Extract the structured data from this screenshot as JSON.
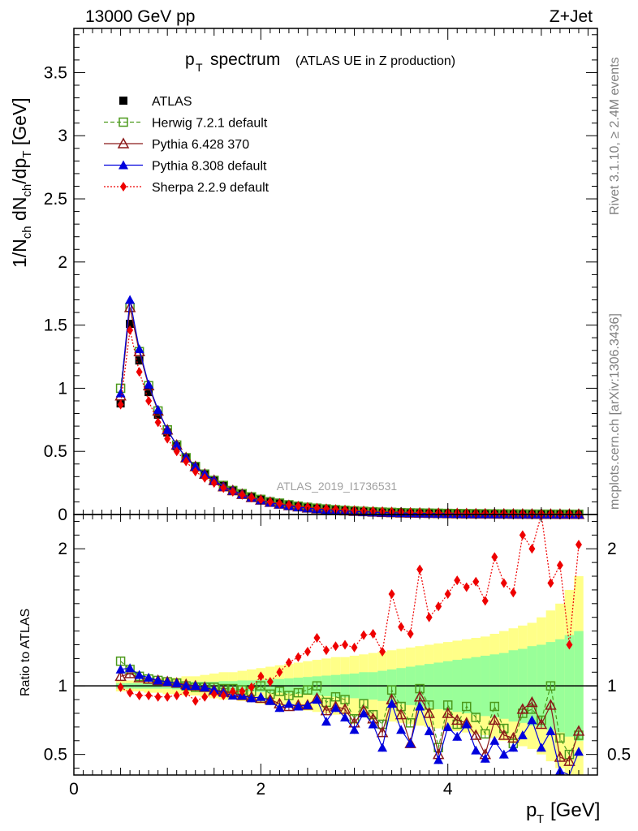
{
  "header": {
    "left": "13000 GeV pp",
    "right": "Z+Jet"
  },
  "side_labels": {
    "rivet": "Rivet 3.1.10, ≥ 2.4M events",
    "mcplots": "mcplots.cern.ch [arXiv:1306.3436]"
  },
  "watermark": "ATLAS_2019_I1736531",
  "chart_data": [
    {
      "type": "scatter",
      "panel": "main",
      "title": "p_T spectrum (ATLAS UE in Z production)",
      "title_main": "p",
      "title_sub": "T",
      "title_word": "spectrum",
      "title_note": "(ATLAS UE in Z production)",
      "ylabel": "1/N_ch dN_ch/dp_T [GeV]",
      "xlabel": "p_T [GeV]",
      "xlim": [
        0,
        5.6
      ],
      "ylim": [
        0,
        3.85
      ],
      "yticks": [
        "0",
        "0.5",
        "1",
        "1.5",
        "2",
        "2.5",
        "3",
        "3.5"
      ],
      "xticks": [
        "0",
        "2",
        "4"
      ],
      "legend_position": "top-left",
      "x": [
        0.5,
        0.6,
        0.7,
        0.8,
        0.9,
        1.0,
        1.1,
        1.2,
        1.3,
        1.4,
        1.5,
        1.6,
        1.7,
        1.8,
        1.9,
        2.0,
        2.1,
        2.2,
        2.3,
        2.4,
        2.5,
        2.6,
        2.7,
        2.8,
        2.9,
        3.0,
        3.1,
        3.2,
        3.3,
        3.4,
        3.5,
        3.6,
        3.7,
        3.8,
        3.9,
        4.0,
        4.1,
        4.2,
        4.3,
        4.4,
        4.5,
        4.6,
        4.7,
        4.8,
        4.9,
        5.0,
        5.1,
        5.2,
        5.3,
        5.4
      ],
      "series": [
        {
          "name": "ATLAS",
          "color": "#000000",
          "marker": "square-filled",
          "line": "none",
          "values": [
            0.88,
            1.51,
            1.22,
            0.97,
            0.79,
            0.65,
            0.54,
            0.45,
            0.38,
            0.32,
            0.27,
            0.23,
            0.19,
            0.165,
            0.14,
            0.12,
            0.105,
            0.09,
            0.078,
            0.068,
            0.06,
            0.052,
            0.046,
            0.04,
            0.035,
            0.031,
            0.027,
            0.024,
            0.021,
            0.019,
            0.017,
            0.015,
            0.013,
            0.012,
            0.011,
            0.0095,
            0.0085,
            0.0076,
            0.0068,
            0.0061,
            0.0055,
            0.005,
            0.0045,
            0.004,
            0.0036,
            0.0033,
            0.003,
            0.0027,
            0.0024,
            0.0022
          ]
        },
        {
          "name": "Herwig 7.2.1 default",
          "color": "#4c9a1c",
          "marker": "square-open",
          "line": "dashed",
          "values": [
            1.0,
            1.64,
            1.29,
            1.02,
            0.82,
            0.67,
            0.55,
            0.45,
            0.38,
            0.32,
            0.27,
            0.23,
            0.19,
            0.165,
            0.14,
            0.12,
            0.1,
            0.09,
            0.077,
            0.066,
            0.057,
            0.05,
            0.044,
            0.038,
            0.033,
            0.029,
            0.025,
            0.022,
            0.019,
            0.017,
            0.015,
            0.013,
            0.012,
            0.011,
            0.01,
            0.0088,
            0.0078,
            0.007,
            0.0063,
            0.0056,
            0.005,
            0.0045,
            0.0041,
            0.0037,
            0.0033,
            0.003,
            0.0027,
            0.0024,
            0.0022,
            0.002
          ]
        },
        {
          "name": "Pythia 6.428 370",
          "color": "#8b1a1a",
          "marker": "triangle-open",
          "line": "solid",
          "values": [
            0.94,
            1.64,
            1.29,
            1.02,
            0.82,
            0.67,
            0.55,
            0.45,
            0.38,
            0.32,
            0.27,
            0.22,
            0.19,
            0.16,
            0.135,
            0.115,
            0.097,
            0.083,
            0.071,
            0.061,
            0.052,
            0.045,
            0.04,
            0.034,
            0.03,
            0.026,
            0.023,
            0.02,
            0.017,
            0.015,
            0.013,
            0.012,
            0.011,
            0.0095,
            0.0085,
            0.0075,
            0.0066,
            0.0059,
            0.0052,
            0.0047,
            0.0042,
            0.0038,
            0.0034,
            0.003,
            0.0027,
            0.0024,
            0.0021,
            0.0019,
            0.0017,
            0.0015
          ]
        },
        {
          "name": "Pythia 8.308 default",
          "color": "#0000dd",
          "marker": "triangle-filled",
          "line": "solid",
          "values": [
            0.96,
            1.7,
            1.31,
            1.03,
            0.83,
            0.67,
            0.55,
            0.45,
            0.38,
            0.32,
            0.27,
            0.22,
            0.19,
            0.16,
            0.135,
            0.113,
            0.095,
            0.08,
            0.068,
            0.058,
            0.05,
            0.043,
            0.037,
            0.032,
            0.028,
            0.024,
            0.021,
            0.018,
            0.016,
            0.014,
            0.012,
            0.011,
            0.0095,
            0.0085,
            0.0075,
            0.0066,
            0.0058,
            0.0051,
            0.0045,
            0.004,
            0.0036,
            0.0032,
            0.0028,
            0.0025,
            0.0022,
            0.002,
            0.0018,
            0.0016,
            0.0014,
            0.0012
          ]
        },
        {
          "name": "Sherpa 2.2.9 default",
          "color": "#ee0000",
          "marker": "diamond-filled",
          "line": "dotted",
          "values": [
            0.87,
            1.46,
            1.13,
            0.9,
            0.73,
            0.6,
            0.5,
            0.42,
            0.34,
            0.29,
            0.25,
            0.21,
            0.18,
            0.155,
            0.133,
            0.115,
            0.1,
            0.087,
            0.076,
            0.067,
            0.059,
            0.052,
            0.047,
            0.042,
            0.037,
            0.033,
            0.03,
            0.027,
            0.024,
            0.022,
            0.02,
            0.018,
            0.016,
            0.015,
            0.014,
            0.013,
            0.012,
            0.011,
            0.01,
            0.0095,
            0.0088,
            0.0082,
            0.0076,
            0.007,
            0.0065,
            0.006,
            0.0055,
            0.005,
            0.0046,
            0.0042
          ]
        }
      ]
    },
    {
      "type": "scatter",
      "panel": "ratio",
      "ylabel": "Ratio to ATLAS",
      "xlabel": "p_T [GeV]",
      "xlim": [
        0,
        5.6
      ],
      "ylim": [
        0.35,
        2.25
      ],
      "yticks": [
        "0.5",
        "1",
        "2"
      ],
      "xticks": [
        "0",
        "2",
        "4"
      ],
      "x": [
        0.5,
        0.6,
        0.7,
        0.8,
        0.9,
        1.0,
        1.1,
        1.2,
        1.3,
        1.4,
        1.5,
        1.6,
        1.7,
        1.8,
        1.9,
        2.0,
        2.1,
        2.2,
        2.3,
        2.4,
        2.5,
        2.6,
        2.7,
        2.8,
        2.9,
        3.0,
        3.1,
        3.2,
        3.3,
        3.4,
        3.5,
        3.6,
        3.7,
        3.8,
        3.9,
        4.0,
        4.1,
        4.2,
        4.3,
        4.4,
        4.5,
        4.6,
        4.7,
        4.8,
        4.9,
        5.0,
        5.1,
        5.2,
        5.3,
        5.4
      ],
      "bands": {
        "stat_syst_green": [
          0.02,
          0.02,
          0.02,
          0.02,
          0.02,
          0.02,
          0.025,
          0.025,
          0.03,
          0.03,
          0.03,
          0.035,
          0.035,
          0.04,
          0.04,
          0.045,
          0.05,
          0.05,
          0.055,
          0.06,
          0.065,
          0.07,
          0.075,
          0.08,
          0.085,
          0.09,
          0.1,
          0.1,
          0.11,
          0.12,
          0.13,
          0.14,
          0.15,
          0.16,
          0.17,
          0.18,
          0.19,
          0.2,
          0.21,
          0.22,
          0.23,
          0.24,
          0.26,
          0.27,
          0.29,
          0.3,
          0.32,
          0.34,
          0.37,
          0.4
        ],
        "total_yellow": [
          0.04,
          0.04,
          0.04,
          0.05,
          0.05,
          0.06,
          0.06,
          0.07,
          0.07,
          0.08,
          0.09,
          0.1,
          0.1,
          0.11,
          0.12,
          0.13,
          0.14,
          0.15,
          0.16,
          0.17,
          0.18,
          0.19,
          0.2,
          0.21,
          0.21,
          0.22,
          0.23,
          0.24,
          0.25,
          0.26,
          0.27,
          0.28,
          0.29,
          0.3,
          0.31,
          0.32,
          0.33,
          0.34,
          0.35,
          0.36,
          0.38,
          0.4,
          0.42,
          0.44,
          0.46,
          0.5,
          0.55,
          0.6,
          0.7,
          0.8
        ]
      },
      "series": [
        {
          "name": "Herwig 7.2.1 default",
          "color": "#4c9a1c",
          "marker": "square-open",
          "line": "dashed",
          "values": [
            1.18,
            1.12,
            1.07,
            1.05,
            1.04,
            1.03,
            1.02,
            1.0,
            0.99,
            0.99,
            0.99,
            0.98,
            0.98,
            0.97,
            0.96,
            1.0,
            0.94,
            0.96,
            0.93,
            0.95,
            0.97,
            1.0,
            0.88,
            0.92,
            0.9,
            0.76,
            0.87,
            0.79,
            0.72,
            0.97,
            0.85,
            0.73,
            0.98,
            0.86,
            0.55,
            0.86,
            0.72,
            0.85,
            0.77,
            0.65,
            0.85,
            0.69,
            0.58,
            0.8,
            0.83,
            0.75,
            1.0,
            0.62,
            0.5,
            0.64
          ]
        },
        {
          "name": "Pythia 6.428 370",
          "color": "#8b1a1a",
          "marker": "triangle-open",
          "line": "solid",
          "values": [
            1.07,
            1.09,
            1.06,
            1.05,
            1.04,
            1.03,
            1.02,
            1.01,
            1.0,
            0.99,
            0.97,
            0.96,
            0.95,
            0.93,
            0.92,
            0.91,
            0.9,
            0.87,
            0.85,
            0.86,
            0.86,
            0.91,
            0.82,
            0.85,
            0.83,
            0.73,
            0.82,
            0.76,
            0.66,
            0.9,
            0.79,
            0.58,
            0.92,
            0.8,
            0.5,
            0.8,
            0.75,
            0.73,
            0.64,
            0.5,
            0.75,
            0.64,
            0.62,
            0.83,
            0.88,
            0.72,
            0.86,
            0.48,
            0.45,
            0.67
          ]
        },
        {
          "name": "Pythia 8.308 default",
          "color": "#0000dd",
          "marker": "triangle-filled",
          "line": "solid",
          "values": [
            1.12,
            1.13,
            1.08,
            1.06,
            1.04,
            1.03,
            1.02,
            1.0,
            1.0,
            0.99,
            0.97,
            0.95,
            0.93,
            0.93,
            0.91,
            0.92,
            0.89,
            0.84,
            0.87,
            0.85,
            0.86,
            0.9,
            0.74,
            0.84,
            0.77,
            0.68,
            0.8,
            0.72,
            0.55,
            0.87,
            0.68,
            0.58,
            0.85,
            0.67,
            0.46,
            0.7,
            0.63,
            0.72,
            0.53,
            0.47,
            0.6,
            0.5,
            0.55,
            0.64,
            0.75,
            0.55,
            0.67,
            0.38,
            0.32,
            0.52
          ]
        },
        {
          "name": "Sherpa 2.2.9 default",
          "color": "#ee0000",
          "marker": "diamond-filled",
          "line": "dotted",
          "values": [
            0.99,
            0.95,
            0.93,
            0.93,
            0.92,
            0.92,
            0.93,
            0.95,
            0.89,
            0.92,
            0.94,
            0.93,
            0.96,
            0.96,
            0.99,
            1.07,
            1.03,
            1.1,
            1.17,
            1.21,
            1.25,
            1.35,
            1.26,
            1.29,
            1.3,
            1.28,
            1.37,
            1.38,
            1.25,
            1.67,
            1.43,
            1.38,
            1.85,
            1.5,
            1.58,
            1.67,
            1.77,
            1.72,
            1.76,
            1.62,
            1.94,
            1.75,
            1.68,
            2.1,
            2.0,
            2.3,
            1.75,
            1.88,
            1.3,
            2.03
          ]
        }
      ]
    }
  ]
}
